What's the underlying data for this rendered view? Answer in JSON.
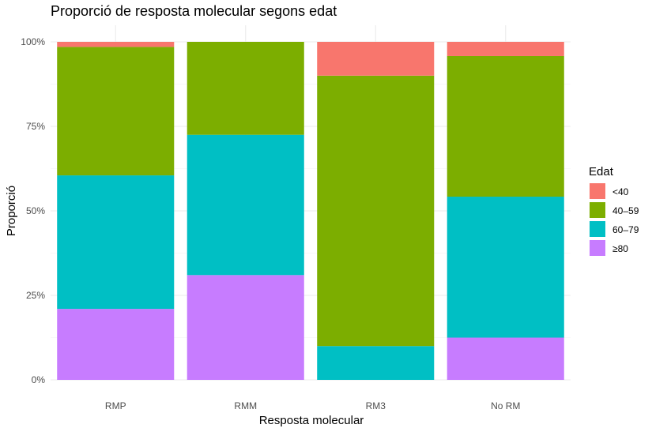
{
  "chart_data": {
    "type": "bar",
    "stacked": true,
    "title": "Proporció de resposta molecular segons edat",
    "xlabel": "Resposta molecular",
    "ylabel": "Proporció",
    "ylim": [
      0,
      1
    ],
    "yticks": [
      0,
      0.25,
      0.5,
      0.75,
      1
    ],
    "yticklabels": [
      "0%",
      "25%",
      "50%",
      "75%",
      "100%"
    ],
    "grid": true,
    "legend": {
      "title": "Edat",
      "position": "right"
    },
    "categories": [
      "RMP",
      "RMM",
      "RM3",
      "No RM"
    ],
    "series": [
      {
        "name": "≥80",
        "color": "#C77CFF",
        "values": [
          0.21,
          0.31,
          0.0,
          0.125
        ]
      },
      {
        "name": "60–79",
        "color": "#00BFC4",
        "values": [
          0.395,
          0.415,
          0.1,
          0.417
        ]
      },
      {
        "name": "40–59",
        "color": "#7CAE00",
        "values": [
          0.38,
          0.275,
          0.8,
          0.416
        ]
      },
      {
        "name": "<40",
        "color": "#F8766D",
        "values": [
          0.015,
          0.0,
          0.1,
          0.042
        ]
      }
    ]
  }
}
